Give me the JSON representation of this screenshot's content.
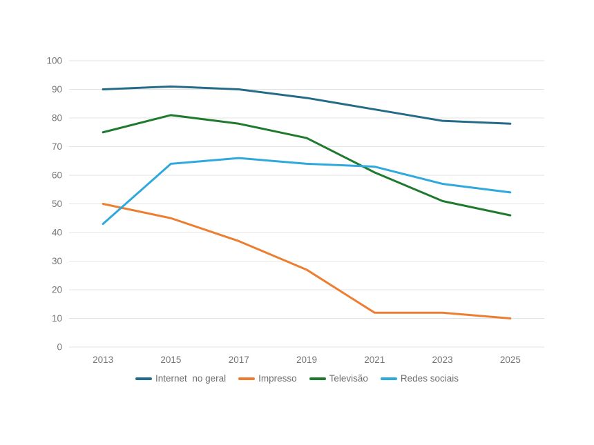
{
  "chart_data": {
    "type": "line",
    "title": "",
    "xlabel": "",
    "ylabel": "",
    "categories": [
      "2013",
      "2015",
      "2017",
      "2019",
      "2021",
      "2023",
      "2025"
    ],
    "series": [
      {
        "id": "internet-no-geral",
        "name": "Internet  no geral",
        "color": "#246B8A",
        "values": [
          90,
          91,
          90,
          87,
          83,
          79,
          78
        ]
      },
      {
        "id": "impresso",
        "name": "Impresso",
        "color": "#ED7D31",
        "values": [
          50,
          45,
          37,
          27,
          12,
          12,
          10
        ]
      },
      {
        "id": "televisao",
        "name": "Televisão",
        "color": "#1F7A2D",
        "values": [
          75,
          81,
          78,
          73,
          61,
          51,
          46
        ]
      },
      {
        "id": "redes-sociais",
        "name": "Redes sociais",
        "color": "#2FA8DC",
        "values": [
          43,
          64,
          66,
          64,
          63,
          57,
          54
        ]
      }
    ],
    "ylim": [
      0,
      100
    ],
    "yticks": [
      0,
      10,
      20,
      30,
      40,
      50,
      60,
      70,
      80,
      90,
      100
    ],
    "grid": "horizontal",
    "legend_position": "bottom"
  },
  "styles": {
    "background": "#FFFFFF",
    "gridline_color": "#E3E3E3",
    "tick_label_color": "#757575",
    "legend_text_color": "#6E6E6E"
  }
}
